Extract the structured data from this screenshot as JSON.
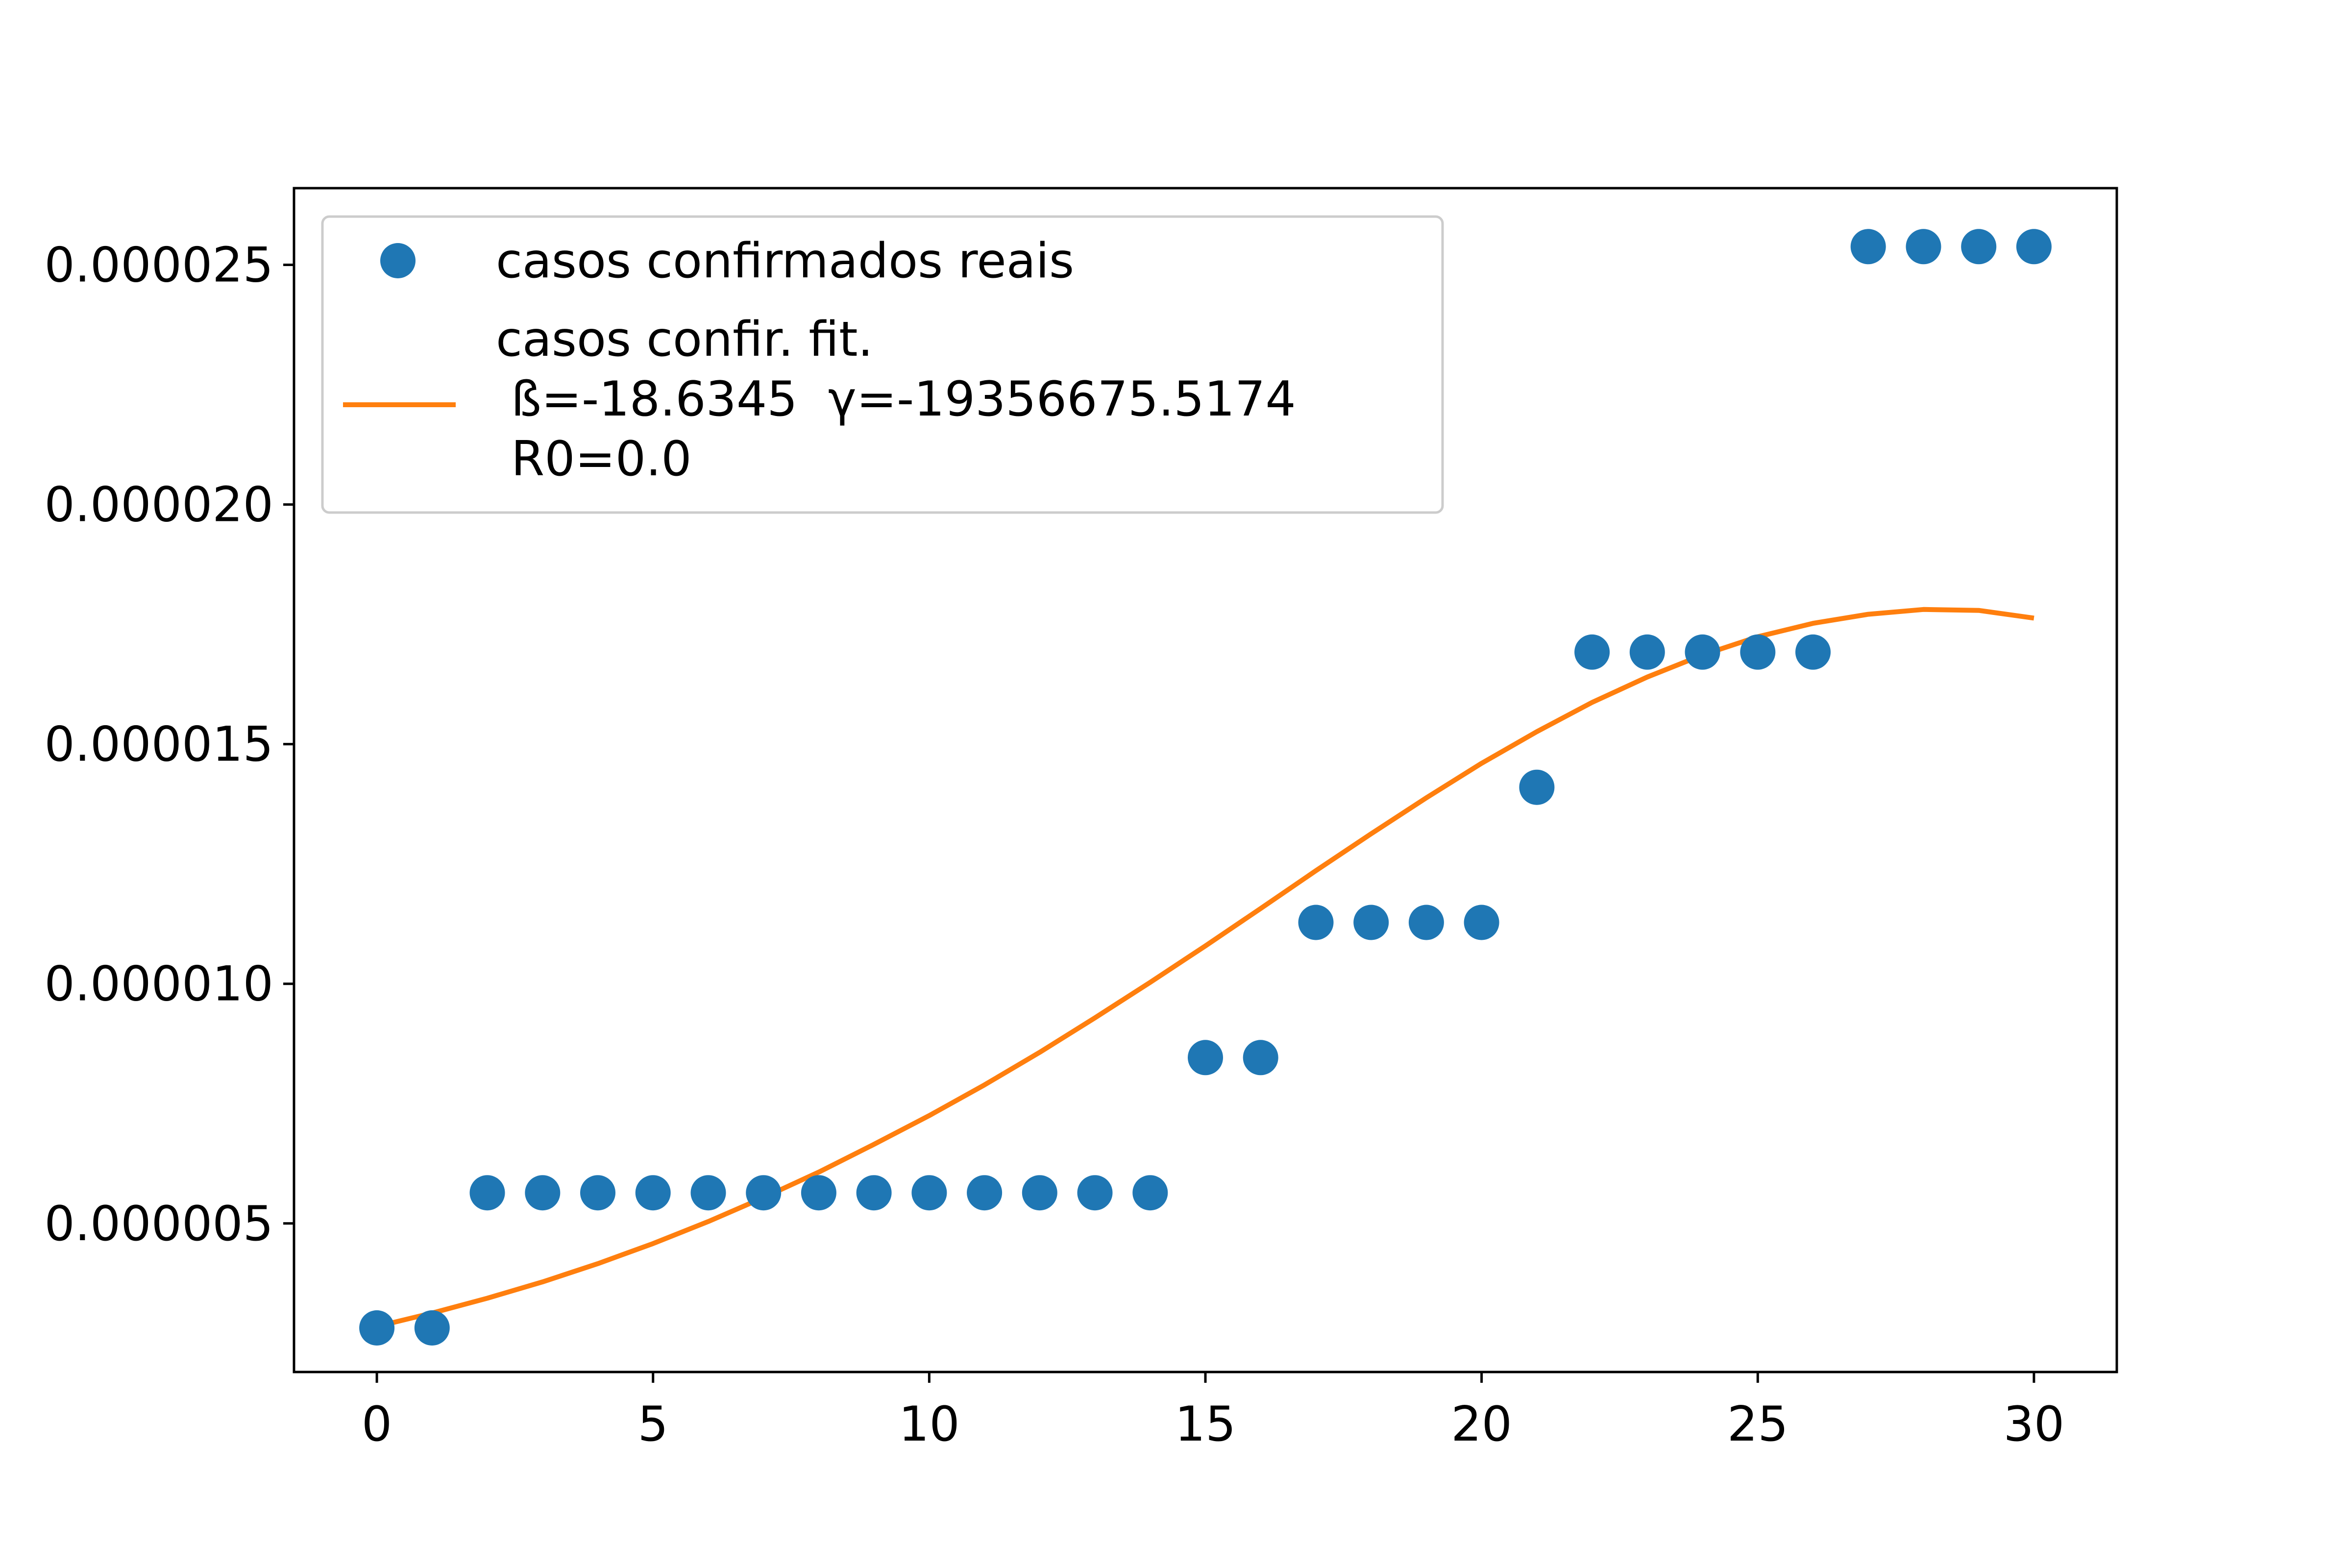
{
  "chart_data": {
    "type": "line",
    "title": "",
    "xlabel": "",
    "ylabel": "",
    "xlim": [
      -1.5,
      31.5
    ],
    "ylim": [
      1.9e-06,
      2.66e-05
    ],
    "xticks": [
      0,
      5,
      10,
      15,
      20,
      25,
      30
    ],
    "xtick_labels": [
      "0",
      "5",
      "10",
      "15",
      "20",
      "25",
      "30"
    ],
    "yticks": [
      5e-06,
      1e-05,
      1.5e-05,
      2e-05,
      2.5e-05
    ],
    "ytick_labels": [
      "0.000005",
      "0.000010",
      "0.000015",
      "0.000020",
      "0.000025"
    ],
    "grid": false,
    "legend_position": "top-left",
    "series": [
      {
        "name": "casos confirmados reais",
        "type": "scatter",
        "color": "#1f77b4",
        "x": [
          0,
          1,
          2,
          3,
          4,
          5,
          6,
          7,
          8,
          9,
          10,
          11,
          12,
          13,
          14,
          15,
          16,
          17,
          18,
          19,
          20,
          21,
          22,
          23,
          24,
          25,
          26,
          27,
          28,
          29,
          30
        ],
        "y": [
          2.82e-06,
          2.82e-06,
          5.64e-06,
          5.64e-06,
          5.64e-06,
          5.64e-06,
          5.64e-06,
          5.64e-06,
          5.64e-06,
          5.64e-06,
          5.64e-06,
          5.64e-06,
          5.64e-06,
          5.64e-06,
          5.64e-06,
          8.46e-06,
          8.46e-06,
          1.128e-05,
          1.128e-05,
          1.128e-05,
          1.128e-05,
          1.41e-05,
          1.692e-05,
          1.692e-05,
          1.692e-05,
          1.692e-05,
          1.692e-05,
          2.538e-05,
          2.538e-05,
          2.538e-05,
          2.538e-05
        ]
      },
      {
        "name": "casos confir. fit.\n ß=-18.6345  γ=-19356675.5174\n R0=0.0",
        "name_lines": [
          "casos confir. fit.",
          " ß=-18.6345  γ=-19356675.5174",
          " R0=0.0"
        ],
        "type": "line",
        "color": "#ff7f0e",
        "x": [
          0,
          1,
          2,
          3,
          4,
          5,
          6,
          7,
          8,
          9,
          10,
          11,
          12,
          13,
          14,
          15,
          16,
          17,
          18,
          19,
          20,
          21,
          22,
          23,
          24,
          25,
          26,
          27,
          28,
          29,
          30
        ],
        "y": [
          2.85e-06,
          3.13e-06,
          3.44e-06,
          3.78e-06,
          4.16e-06,
          4.58e-06,
          5.04e-06,
          5.54e-06,
          6.07e-06,
          6.65e-06,
          7.25e-06,
          7.89e-06,
          8.57e-06,
          9.29e-06,
          1.003e-05,
          1.079e-05,
          1.157e-05,
          1.236e-05,
          1.313e-05,
          1.388e-05,
          1.46e-05,
          1.526e-05,
          1.587e-05,
          1.64e-05,
          1.686e-05,
          1.724e-05,
          1.752e-05,
          1.771e-05,
          1.781e-05,
          1.779e-05,
          1.763e-05
        ]
      }
    ]
  }
}
